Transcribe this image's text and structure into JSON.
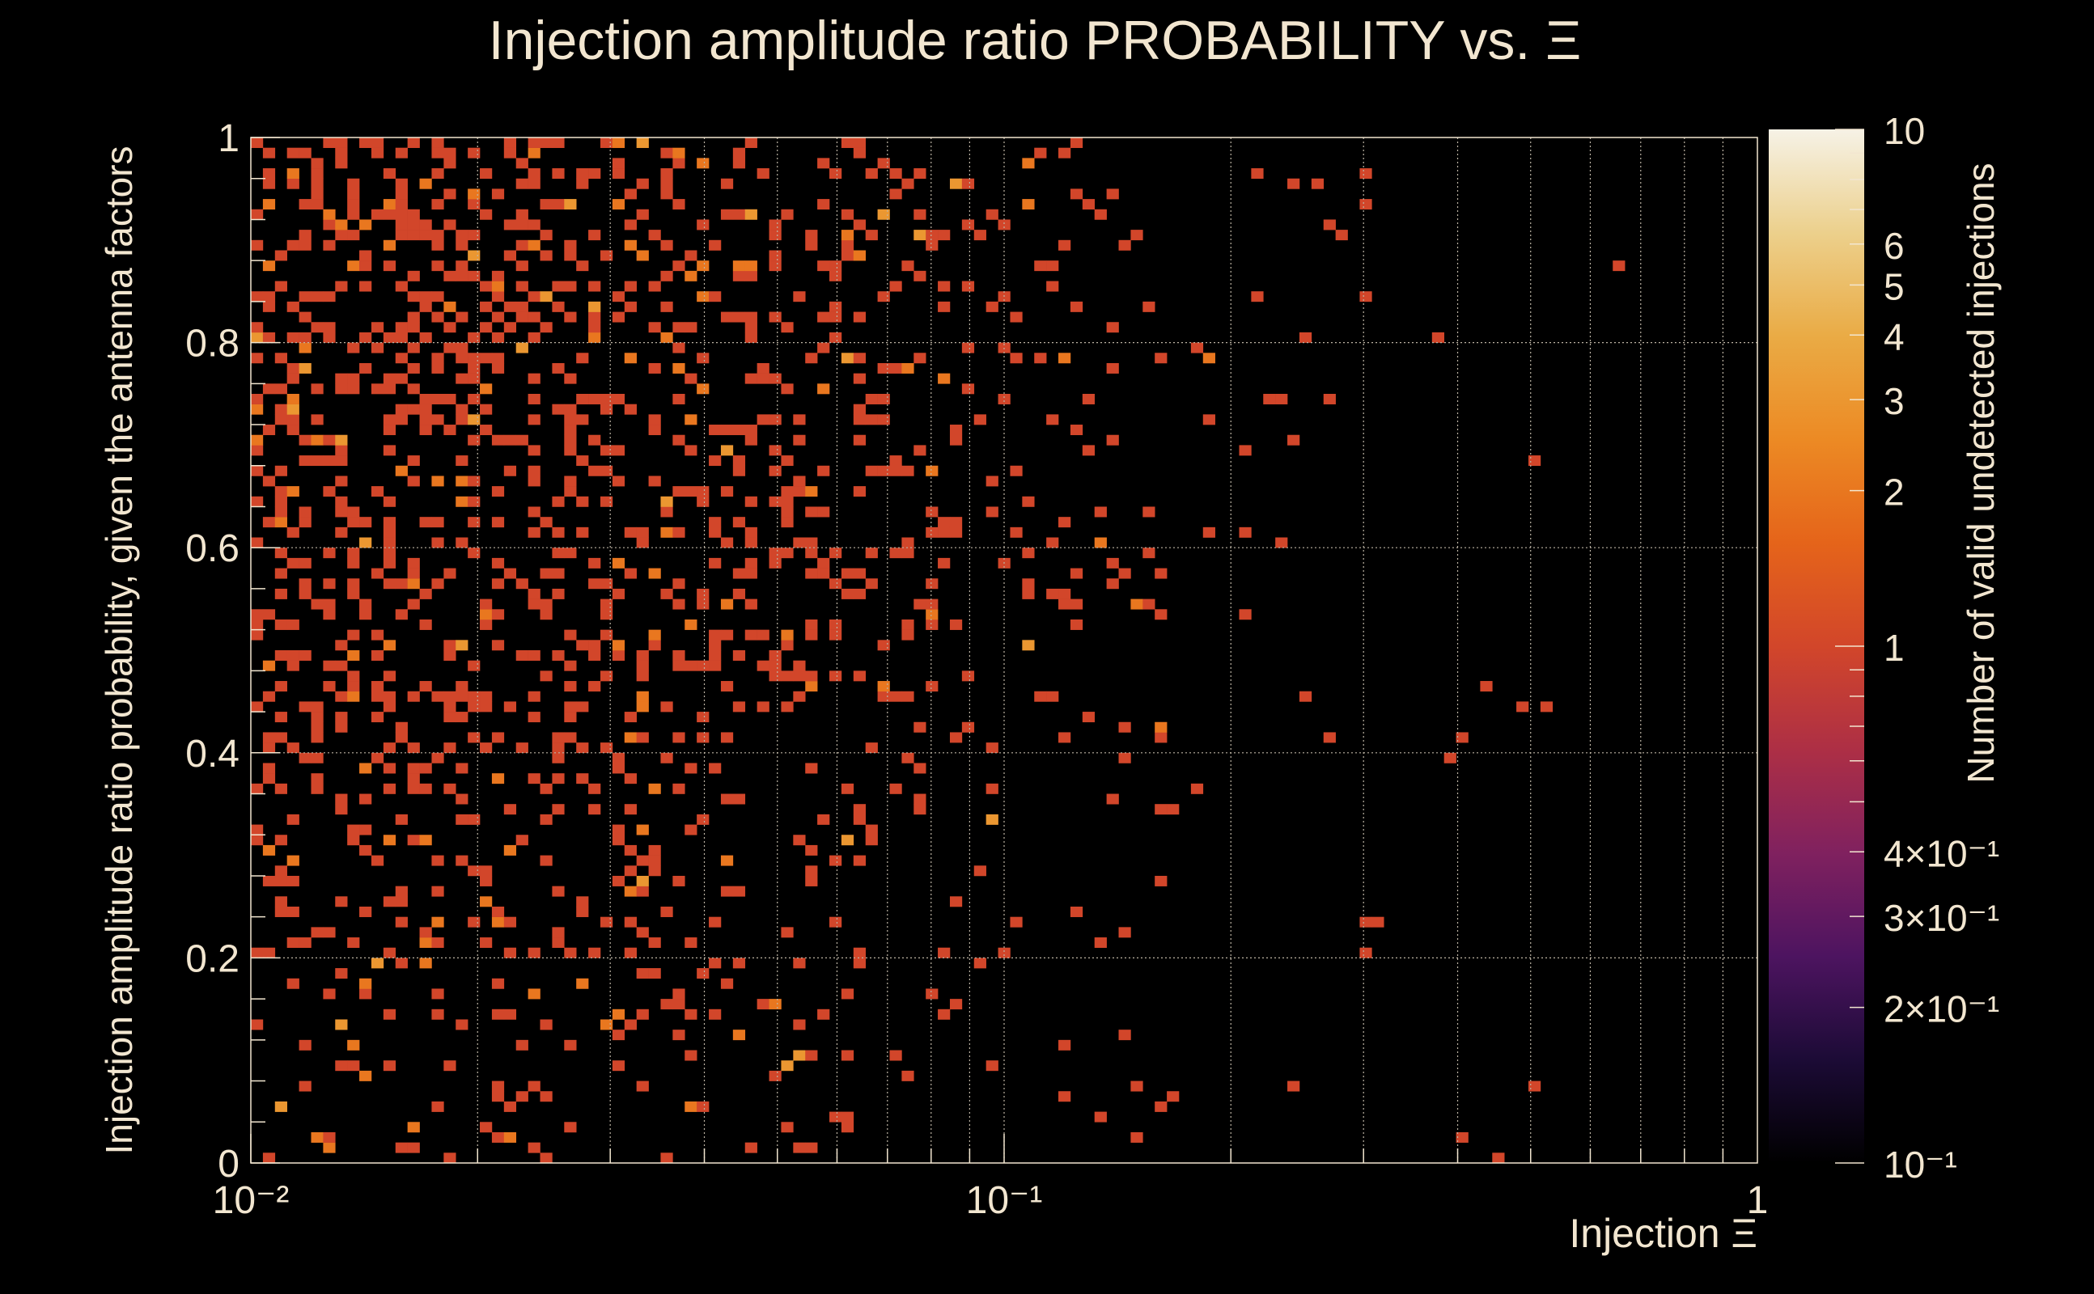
{
  "chart_data": {
    "type": "heatmap",
    "title": "Injection amplitude ratio PROBABILITY vs.  Ξ",
    "xlabel": "Injection Ξ",
    "ylabel": "Injection amplitude ratio probability, given the antenna factors",
    "zlabel": "Number of valid undetected injections",
    "x_scale": "log",
    "xlim": [
      0.01,
      1
    ],
    "ylim": [
      0,
      1
    ],
    "z_scale": "log",
    "zlim": [
      0.1,
      10
    ],
    "grid": true,
    "x_ticks": [
      {
        "value": 0.01,
        "label": "10⁻²"
      },
      {
        "value": 0.1,
        "label": "10⁻¹"
      },
      {
        "value": 1,
        "label": "1"
      }
    ],
    "y_ticks": [
      {
        "value": 0,
        "label": "0"
      },
      {
        "value": 0.2,
        "label": "0.2"
      },
      {
        "value": 0.4,
        "label": "0.4"
      },
      {
        "value": 0.6,
        "label": "0.6"
      },
      {
        "value": 0.8,
        "label": "0.8"
      },
      {
        "value": 1,
        "label": "1"
      }
    ],
    "z_ticks": [
      {
        "value": 10,
        "label": "10"
      },
      {
        "value": 6,
        "label": "6"
      },
      {
        "value": 5,
        "label": "5"
      },
      {
        "value": 4,
        "label": "4"
      },
      {
        "value": 3,
        "label": "3"
      },
      {
        "value": 2,
        "label": "2"
      },
      {
        "value": 1,
        "label": "1"
      },
      {
        "value": 0.4,
        "label": "4×10⁻¹"
      },
      {
        "value": 0.3,
        "label": "3×10⁻¹"
      },
      {
        "value": 0.2,
        "label": "2×10⁻¹"
      },
      {
        "value": 0.1,
        "label": "10⁻¹"
      }
    ],
    "colormap": [
      "#000000",
      "#1c0b36",
      "#4d1460",
      "#80215f",
      "#ad2f45",
      "#d2462a",
      "#e5641a",
      "#ec8a24",
      "#eaab45",
      "#ecd08c",
      "#f6f2e6"
    ],
    "bins": {
      "x_edges_log10": [
        -2,
        0
      ],
      "y_edges": [
        0,
        1
      ],
      "nx": 125,
      "ny": 100,
      "occupancy_density_by_log10_xi": [
        [
          -2.0,
          0.62
        ],
        [
          -1.6,
          0.5
        ],
        [
          -1.3,
          0.38
        ],
        [
          -1.0,
          0.22
        ],
        [
          -0.75,
          0.06
        ],
        [
          -0.5,
          0.01
        ],
        [
          0,
          0
        ]
      ],
      "occupancy_density_by_probability": [
        [
          0,
          0.3
        ],
        [
          0.2,
          0.42
        ],
        [
          0.4,
          0.62
        ],
        [
          0.6,
          0.88
        ],
        [
          0.8,
          1.0
        ],
        [
          1.0,
          1.0
        ]
      ],
      "isolated_bins": [
        {
          "xi": 0.3,
          "probability": 0.235,
          "count": 1
        },
        {
          "xi": 0.31,
          "probability": 0.235,
          "count": 1
        },
        {
          "xi": 0.4,
          "probability": 0.025,
          "count": 1
        },
        {
          "xi": 0.45,
          "probability": 0.005,
          "count": 1
        },
        {
          "xi": 0.5,
          "probability": 0.075,
          "count": 1
        },
        {
          "xi": 0.27,
          "probability": 0.415,
          "count": 1
        },
        {
          "xi": 0.25,
          "probability": 0.455,
          "count": 1
        },
        {
          "xi": 0.21,
          "probability": 0.615,
          "count": 1
        },
        {
          "xi": 0.23,
          "probability": 0.605,
          "count": 1
        },
        {
          "xi": 0.24,
          "probability": 0.955,
          "count": 1
        },
        {
          "xi": 0.26,
          "probability": 0.955,
          "count": 1
        },
        {
          "xi": 0.25,
          "probability": 0.805,
          "count": 1
        }
      ],
      "count_distribution": {
        "1": 0.88,
        "2": 0.09,
        "3": 0.03
      }
    }
  }
}
